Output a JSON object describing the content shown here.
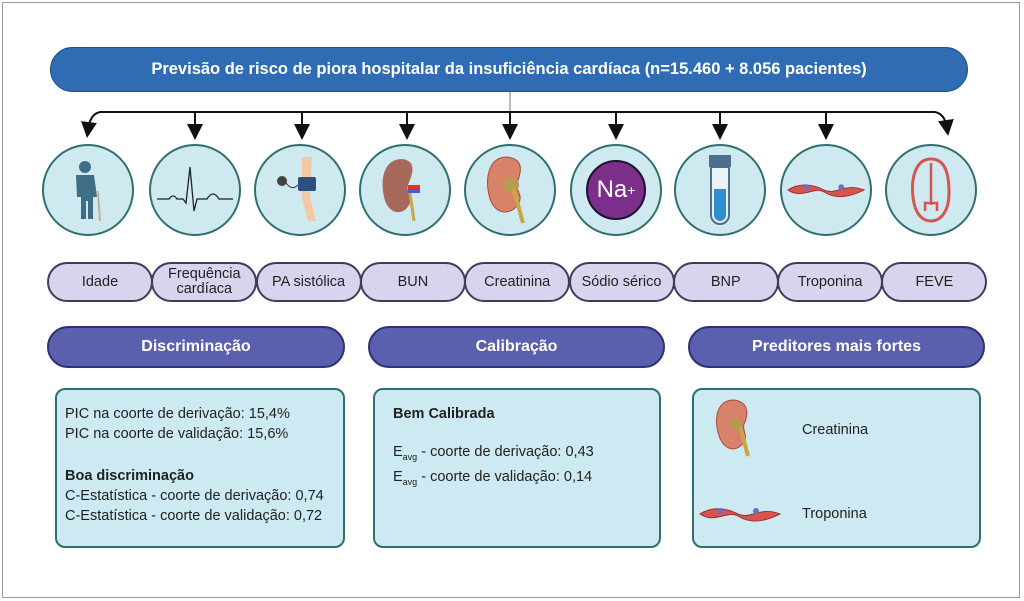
{
  "title": "Previsão de risco de piora hospitalar da insuficiência cardíaca (n=15.460 + 8.056 pacientes)",
  "predictors": [
    {
      "label": "Idade",
      "icon": "elderly-person-icon"
    },
    {
      "label": "Frequência cardíaca",
      "icon": "ecg-icon"
    },
    {
      "label": "PA sistólica",
      "icon": "blood-pressure-cuff-icon"
    },
    {
      "label": "BUN",
      "icon": "kidney-icon"
    },
    {
      "label": "Creatinina",
      "icon": "kidney-cross-section-icon"
    },
    {
      "label": "Sódio sérico",
      "icon": "sodium-ion-icon",
      "icon_text": "Na",
      "icon_sup": "+"
    },
    {
      "label": "BNP",
      "icon": "test-tube-icon"
    },
    {
      "label": "Troponina",
      "icon": "cardiac-muscle-icon"
    },
    {
      "label": "FEVE",
      "icon": "heart-icon"
    }
  ],
  "sections": {
    "discrimination": {
      "header": "Discriminação",
      "line1": "PIC na coorte de derivação: 15,4%",
      "line2": "PIC na coorte de validação: 15,6%",
      "subheading": "Boa discriminação",
      "line3": "C-Estatística - coorte de derivação: 0,74",
      "line4": "C-Estatística - coorte de validação: 0,72"
    },
    "calibration": {
      "header": "Calibração",
      "subheading": "Bem Calibrada",
      "e_symbol": "E",
      "e_sub": "avg",
      "line1": " - coorte de derivação: 0,43",
      "line2": " - coorte de validação: 0,14"
    },
    "strongest": {
      "header": "Preditores mais fortes",
      "items": [
        {
          "label": "Creatinina",
          "icon": "kidney-cross-section-icon"
        },
        {
          "label": "Troponina",
          "icon": "cardiac-muscle-icon"
        }
      ]
    }
  },
  "colors": {
    "title": "#2f6cb3",
    "section_header": "#5a5fae",
    "pill": "#d8d4ee",
    "circle": "#cfe9f1",
    "box": "#cde9f1"
  }
}
